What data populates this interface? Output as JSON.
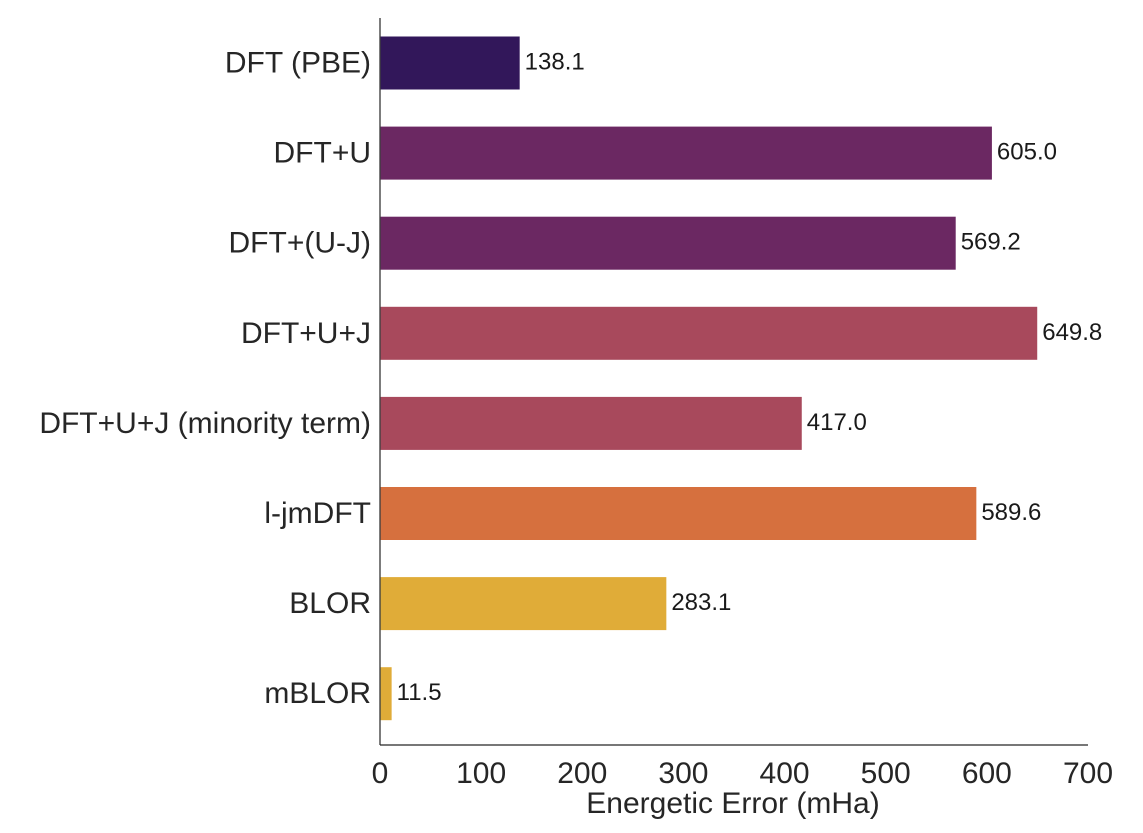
{
  "chart_data": {
    "type": "bar",
    "orientation": "horizontal",
    "title": "",
    "xlabel": "Energetic Error (mHa)",
    "ylabel": "",
    "xlim": [
      0,
      700
    ],
    "xticks": [
      0,
      100,
      200,
      300,
      400,
      500,
      600,
      700
    ],
    "grid": false,
    "legend": "none",
    "categories": [
      "DFT (PBE)",
      "DFT+U",
      "DFT+(U-J)",
      "DFT+U+J",
      "DFT+U+J (minority term)",
      "l-jmDFT",
      "BLOR",
      "mBLOR"
    ],
    "values": [
      138.1,
      605.0,
      569.2,
      649.8,
      417.0,
      589.6,
      283.1,
      11.5
    ],
    "value_labels": [
      "138.1",
      "605.0",
      "569.2",
      "649.8",
      "417.0",
      "589.6",
      "283.1",
      "11.5"
    ],
    "colors": [
      "#32175a",
      "#6b2862",
      "#6b2862",
      "#a8495c",
      "#a8495c",
      "#d6703e",
      "#e0ac38",
      "#e0ac38"
    ]
  }
}
